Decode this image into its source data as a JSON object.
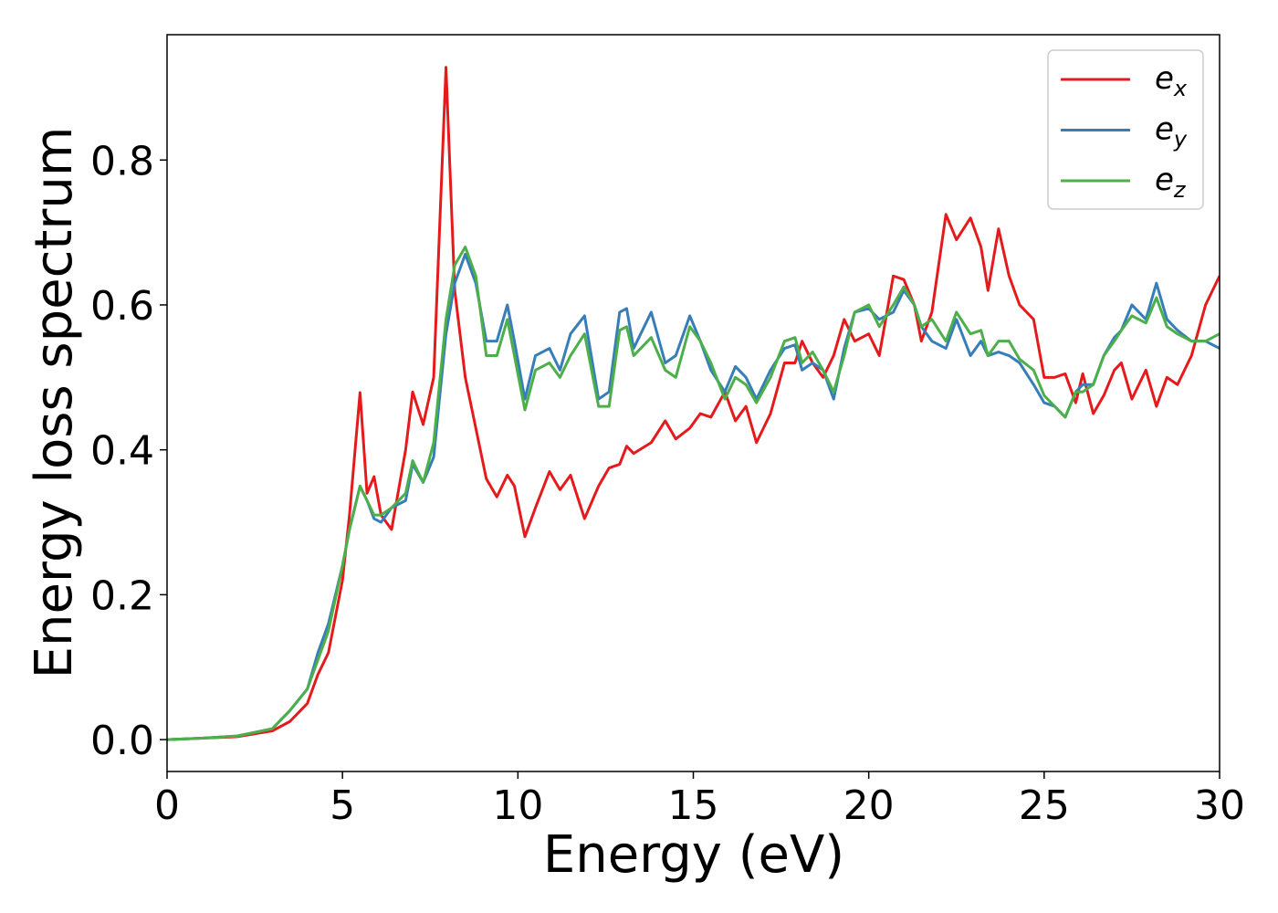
{
  "chart_data": {
    "type": "line",
    "xlabel": "Energy (eV)",
    "ylabel": "Energy loss spectrum",
    "x": [
      0,
      1,
      2,
      3,
      3.5,
      4,
      4.3,
      4.6,
      5,
      5.2,
      5.5,
      5.7,
      5.9,
      6.1,
      6.4,
      6.8,
      7.0,
      7.3,
      7.6,
      7.95,
      8.2,
      8.5,
      8.8,
      9.1,
      9.4,
      9.7,
      9.9,
      10.2,
      10.5,
      10.9,
      11.2,
      11.5,
      11.9,
      12.3,
      12.6,
      12.9,
      13.1,
      13.3,
      13.8,
      14.2,
      14.5,
      14.9,
      15.2,
      15.5,
      15.9,
      16.2,
      16.5,
      16.8,
      17.2,
      17.6,
      17.9,
      18.1,
      18.4,
      18.7,
      19.0,
      19.3,
      19.6,
      20.0,
      20.3,
      20.7,
      21.0,
      21.3,
      21.5,
      21.8,
      22.2,
      22.5,
      22.9,
      23.2,
      23.4,
      23.7,
      24.0,
      24.3,
      24.7,
      25.0,
      25.3,
      25.6,
      25.9,
      26.1,
      26.4,
      26.7,
      27.0,
      27.2,
      27.5,
      27.9,
      28.2,
      28.5,
      28.8,
      29.2,
      29.6,
      30
    ],
    "series": [
      {
        "name": "ex",
        "color": "#e41a1c",
        "values": [
          0,
          0.002,
          0.004,
          0.012,
          0.025,
          0.05,
          0.09,
          0.12,
          0.22,
          0.31,
          0.479,
          0.34,
          0.363,
          0.31,
          0.29,
          0.4,
          0.48,
          0.435,
          0.5,
          0.928,
          0.62,
          0.5,
          0.43,
          0.36,
          0.335,
          0.365,
          0.35,
          0.28,
          0.32,
          0.37,
          0.345,
          0.365,
          0.305,
          0.35,
          0.375,
          0.38,
          0.405,
          0.395,
          0.41,
          0.44,
          0.415,
          0.43,
          0.45,
          0.445,
          0.48,
          0.44,
          0.46,
          0.41,
          0.45,
          0.52,
          0.52,
          0.55,
          0.52,
          0.5,
          0.53,
          0.58,
          0.55,
          0.56,
          0.53,
          0.64,
          0.635,
          0.6,
          0.55,
          0.59,
          0.725,
          0.69,
          0.72,
          0.68,
          0.62,
          0.705,
          0.64,
          0.6,
          0.58,
          0.5,
          0.5,
          0.505,
          0.465,
          0.505,
          0.45,
          0.475,
          0.51,
          0.52,
          0.47,
          0.51,
          0.46,
          0.5,
          0.49,
          0.53,
          0.6,
          0.64
        ]
      },
      {
        "name": "ey",
        "color": "#377eb8",
        "values": [
          0,
          0.002,
          0.005,
          0.015,
          0.04,
          0.07,
          0.12,
          0.16,
          0.24,
          0.29,
          0.35,
          0.33,
          0.305,
          0.3,
          0.32,
          0.33,
          0.38,
          0.355,
          0.39,
          0.56,
          0.63,
          0.67,
          0.63,
          0.55,
          0.55,
          0.6,
          0.55,
          0.47,
          0.53,
          0.54,
          0.51,
          0.56,
          0.585,
          0.47,
          0.48,
          0.59,
          0.595,
          0.54,
          0.59,
          0.52,
          0.53,
          0.585,
          0.55,
          0.51,
          0.48,
          0.515,
          0.5,
          0.47,
          0.51,
          0.54,
          0.545,
          0.51,
          0.52,
          0.51,
          0.47,
          0.54,
          0.59,
          0.595,
          0.58,
          0.59,
          0.62,
          0.6,
          0.57,
          0.55,
          0.54,
          0.58,
          0.53,
          0.55,
          0.53,
          0.535,
          0.53,
          0.52,
          0.49,
          0.465,
          0.46,
          0.445,
          0.48,
          0.49,
          0.49,
          0.53,
          0.555,
          0.565,
          0.6,
          0.58,
          0.63,
          0.58,
          0.565,
          0.55,
          0.55,
          0.54
        ]
      },
      {
        "name": "ez",
        "color": "#4daf4a",
        "values": [
          0,
          0.002,
          0.005,
          0.015,
          0.04,
          0.07,
          0.11,
          0.15,
          0.24,
          0.29,
          0.35,
          0.33,
          0.31,
          0.31,
          0.32,
          0.34,
          0.385,
          0.355,
          0.41,
          0.58,
          0.655,
          0.68,
          0.64,
          0.53,
          0.53,
          0.58,
          0.53,
          0.455,
          0.51,
          0.52,
          0.5,
          0.53,
          0.56,
          0.46,
          0.46,
          0.565,
          0.57,
          0.53,
          0.555,
          0.51,
          0.5,
          0.57,
          0.55,
          0.52,
          0.47,
          0.5,
          0.49,
          0.465,
          0.5,
          0.55,
          0.555,
          0.52,
          0.535,
          0.51,
          0.48,
          0.53,
          0.59,
          0.6,
          0.57,
          0.6,
          0.625,
          0.6,
          0.57,
          0.58,
          0.55,
          0.59,
          0.56,
          0.565,
          0.53,
          0.55,
          0.55,
          0.525,
          0.51,
          0.475,
          0.46,
          0.445,
          0.48,
          0.48,
          0.49,
          0.53,
          0.55,
          0.565,
          0.585,
          0.575,
          0.61,
          0.57,
          0.56,
          0.55,
          0.55,
          0.56
        ]
      }
    ],
    "xlim": [
      0,
      30
    ],
    "xticks": [
      0,
      5,
      10,
      15,
      20,
      25,
      30
    ],
    "ylim": [
      -0.044,
      0.973
    ],
    "yticks": [
      {
        "value": 0,
        "label": "0.0"
      },
      0.2,
      0.4,
      0.6,
      0.8
    ],
    "grid": false,
    "legend": "upper right"
  }
}
